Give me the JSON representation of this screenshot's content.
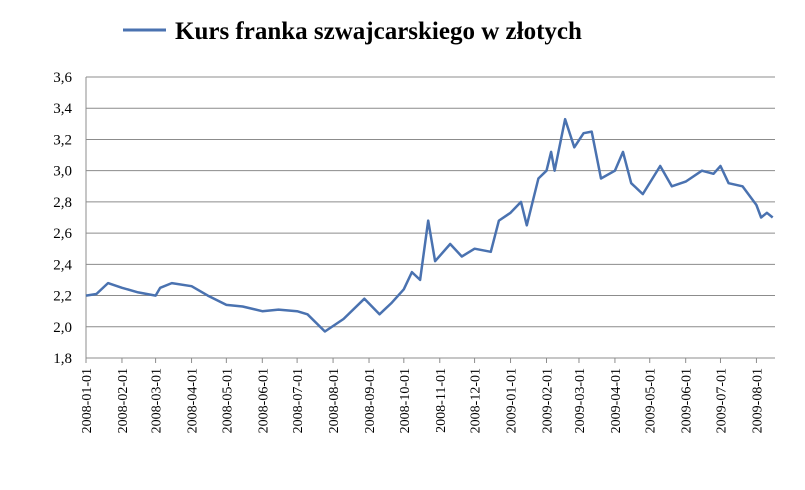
{
  "chart_data": {
    "type": "line",
    "legend": "top",
    "grid": true,
    "series": [
      {
        "name": "Kurs franka szwajcarskiego w złotych",
        "color": "#4a72b0",
        "x": [
          "2008-01-01",
          "2008-01-10",
          "2008-01-20",
          "2008-02-01",
          "2008-02-15",
          "2008-03-01",
          "2008-03-05",
          "2008-03-15",
          "2008-04-01",
          "2008-04-15",
          "2008-05-01",
          "2008-05-15",
          "2008-06-01",
          "2008-06-15",
          "2008-07-01",
          "2008-07-10",
          "2008-07-25",
          "2008-08-10",
          "2008-08-28",
          "2008-09-10",
          "2008-09-20",
          "2008-10-01",
          "2008-10-08",
          "2008-10-15",
          "2008-10-22",
          "2008-10-28",
          "2008-11-10",
          "2008-11-20",
          "2008-12-01",
          "2008-12-15",
          "2008-12-22",
          "2009-01-01",
          "2009-01-10",
          "2009-01-15",
          "2009-01-25",
          "2009-02-01",
          "2009-02-05",
          "2009-02-08",
          "2009-02-17",
          "2009-02-25",
          "2009-03-05",
          "2009-03-12",
          "2009-03-20",
          "2009-04-01",
          "2009-04-08",
          "2009-04-15",
          "2009-04-25",
          "2009-05-10",
          "2009-05-20",
          "2009-06-01",
          "2009-06-15",
          "2009-06-25",
          "2009-07-01",
          "2009-07-08",
          "2009-07-20",
          "2009-08-01",
          "2009-08-05",
          "2009-08-10",
          "2009-08-15"
        ],
        "values": [
          2.2,
          2.21,
          2.28,
          2.25,
          2.22,
          2.2,
          2.25,
          2.28,
          2.26,
          2.2,
          2.14,
          2.13,
          2.1,
          2.11,
          2.1,
          2.08,
          1.97,
          2.05,
          2.18,
          2.08,
          2.15,
          2.24,
          2.35,
          2.3,
          2.68,
          2.42,
          2.53,
          2.45,
          2.5,
          2.48,
          2.68,
          2.73,
          2.8,
          2.65,
          2.95,
          3.0,
          3.12,
          3.0,
          3.33,
          3.15,
          3.24,
          3.25,
          2.95,
          3.0,
          3.12,
          2.92,
          2.85,
          3.03,
          2.9,
          2.93,
          3.0,
          2.98,
          3.03,
          2.92,
          2.9,
          2.78,
          2.7,
          2.73,
          2.7
        ]
      }
    ],
    "xlim": [
      "2008-01-01",
      "2009-08-17"
    ],
    "xticks": [
      "2008-01-01",
      "2008-02-01",
      "2008-03-01",
      "2008-04-01",
      "2008-05-01",
      "2008-06-01",
      "2008-07-01",
      "2008-08-01",
      "2008-09-01",
      "2008-10-01",
      "2008-11-01",
      "2008-12-01",
      "2009-01-01",
      "2009-02-01",
      "2009-03-01",
      "2009-04-01",
      "2009-05-01",
      "2009-06-01",
      "2009-07-01",
      "2009-08-01"
    ],
    "ylim": [
      1.8,
      3.6
    ],
    "yticks": [
      {
        "value": 1.8,
        "label": "1,8"
      },
      {
        "value": 2.0,
        "label": "2,0"
      },
      {
        "value": 2.2,
        "label": "2,2"
      },
      {
        "value": 2.4,
        "label": "2,4"
      },
      {
        "value": 2.6,
        "label": "2,6"
      },
      {
        "value": 2.8,
        "label": "2,8"
      },
      {
        "value": 3.0,
        "label": "3,0"
      },
      {
        "value": 3.2,
        "label": "3,2"
      },
      {
        "value": 3.4,
        "label": "3,4"
      },
      {
        "value": 3.6,
        "label": "3,6"
      }
    ]
  }
}
